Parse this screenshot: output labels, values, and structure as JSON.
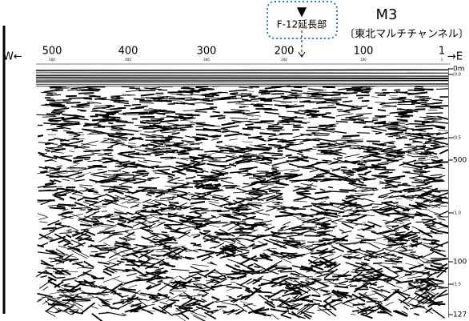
{
  "header": {
    "marker": "▼",
    "label": "F-12延長部",
    "profile": "M3",
    "source": "〔東北マルチチャンネル〕"
  },
  "axis": {
    "west": "W←",
    "east": "→E",
    "top_labels": [
      "500",
      "400",
      "300",
      "200",
      "100",
      "1"
    ],
    "top_small_labels": [
      "500",
      "400",
      "300",
      "200",
      "100",
      "1"
    ],
    "right_labels": [
      "0m",
      "(0.0",
      "(0.5",
      "500",
      "(1.0",
      "100",
      "(1.5",
      "127"
    ]
  }
}
